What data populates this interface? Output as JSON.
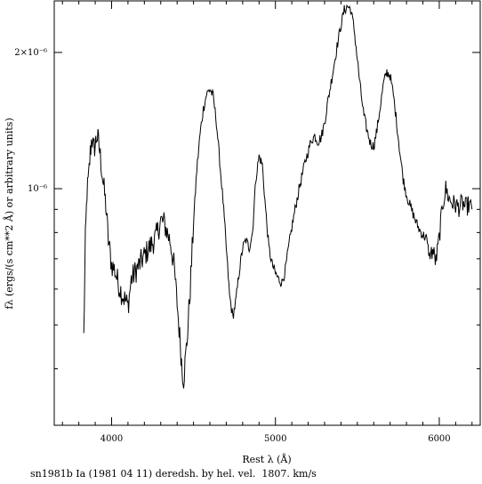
{
  "chart_data": {
    "type": "line",
    "xlabel": "Rest λ (Å)",
    "ylabel": "fλ (ergs/(s cm**2 Å) or arbitrary units)",
    "xlim": [
      3650,
      6250
    ],
    "ylim": [
      3e-07,
      2.6e-06
    ],
    "yscale": "log",
    "x_ticks": [
      4000,
      5000,
      6000
    ],
    "x_tick_labels": [
      "4000",
      "5000",
      "6000"
    ],
    "y_ticks": [
      1e-06,
      2e-06
    ],
    "y_tick_labels": [
      "10⁻⁶",
      "2×10⁻⁶"
    ],
    "grid": false,
    "caption": "sn1981b Ia (1981 04 11) deredsh. by hel. vel.  1807. km/s",
    "series": [
      {
        "name": "",
        "x": [
          3830,
          3840,
          3850,
          3860,
          3870,
          3880,
          3890,
          3900,
          3910,
          3920,
          3935,
          3950,
          3965,
          3980,
          4000,
          4020,
          4040,
          4060,
          4080,
          4100,
          4120,
          4150,
          4180,
          4210,
          4240,
          4270,
          4300,
          4320,
          4340,
          4360,
          4380,
          4400,
          4420,
          4430,
          4440,
          4460,
          4480,
          4500,
          4520,
          4540,
          4560,
          4580,
          4600,
          4620,
          4640,
          4660,
          4680,
          4700,
          4720,
          4740,
          4760,
          4780,
          4800,
          4820,
          4840,
          4860,
          4880,
          4900,
          4920,
          4940,
          4960,
          4980,
          5000,
          5020,
          5040,
          5060,
          5080,
          5100,
          5120,
          5140,
          5160,
          5180,
          5200,
          5220,
          5240,
          5260,
          5280,
          5300,
          5320,
          5340,
          5360,
          5380,
          5400,
          5420,
          5440,
          5460,
          5480,
          5500,
          5520,
          5540,
          5560,
          5580,
          5600,
          5620,
          5640,
          5660,
          5680,
          5700,
          5720,
          5740,
          5760,
          5780,
          5800,
          5820,
          5840,
          5860,
          5880,
          5900,
          5920,
          5940,
          5960,
          5980,
          6000,
          6020,
          6040,
          6060,
          6080,
          6100,
          6120,
          6140,
          6160,
          6180,
          6200
        ],
        "y": [
          4.7e-07,
          7.7e-07,
          9.8e-07,
          1.06e-06,
          1.2e-06,
          1.31e-06,
          1.22e-06,
          1.25e-06,
          1.31e-06,
          1.27e-06,
          1.15e-06,
          1.02e-06,
          9.2e-07,
          7.7e-07,
          6.8e-07,
          6.6e-07,
          6.2e-07,
          5.9e-07,
          5.7e-07,
          5.5e-07,
          6.3e-07,
          6.6e-07,
          6.9e-07,
          7.2e-07,
          7.5e-07,
          7.8e-07,
          8.5e-07,
          8.4e-07,
          8e-07,
          7.6e-07,
          6.8e-07,
          5.6e-07,
          4.5e-07,
          4e-07,
          3.8e-07,
          4.6e-07,
          6e-07,
          8.4e-07,
          1.1e-06,
          1.32e-06,
          1.5e-06,
          1.62e-06,
          1.66e-06,
          1.6e-06,
          1.4e-06,
          1.15e-06,
          9.4e-07,
          7.4e-07,
          5.8e-07,
          5.2e-07,
          5.7e-07,
          6.6e-07,
          7.4e-07,
          7.7e-07,
          7.4e-07,
          8e-07,
          1.05e-06,
          1.18e-06,
          1.13e-06,
          9e-07,
          7.4e-07,
          6.8e-07,
          6.5e-07,
          6.3e-07,
          6.2e-07,
          6.6e-07,
          7.4e-07,
          8.2e-07,
          9e-07,
          9.8e-07,
          1.06e-06,
          1.14e-06,
          1.21e-06,
          1.28e-06,
          1.31e-06,
          1.27e-06,
          1.3e-06,
          1.4e-06,
          1.56e-06,
          1.72e-06,
          1.9e-06,
          2.1e-06,
          2.3e-06,
          2.48e-06,
          2.53e-06,
          2.49e-06,
          2.26e-06,
          1.93e-06,
          1.65e-06,
          1.45e-06,
          1.34e-06,
          1.26e-06,
          1.24e-06,
          1.35e-06,
          1.52e-06,
          1.71e-06,
          1.81e-06,
          1.78e-06,
          1.61e-06,
          1.4e-06,
          1.2e-06,
          1.05e-06,
          9.7e-07,
          9.2e-07,
          8.8e-07,
          8.4e-07,
          8.1e-07,
          7.9e-07,
          7.8e-07,
          7.1e-07,
          7.3e-07,
          6.9e-07,
          7.8e-07,
          9.2e-07,
          1e-06,
          9.5e-07,
          9.3e-07,
          9.2e-07,
          9.1e-07,
          9.3e-07,
          9.1e-07,
          9.2e-07,
          9e-07
        ]
      }
    ]
  }
}
